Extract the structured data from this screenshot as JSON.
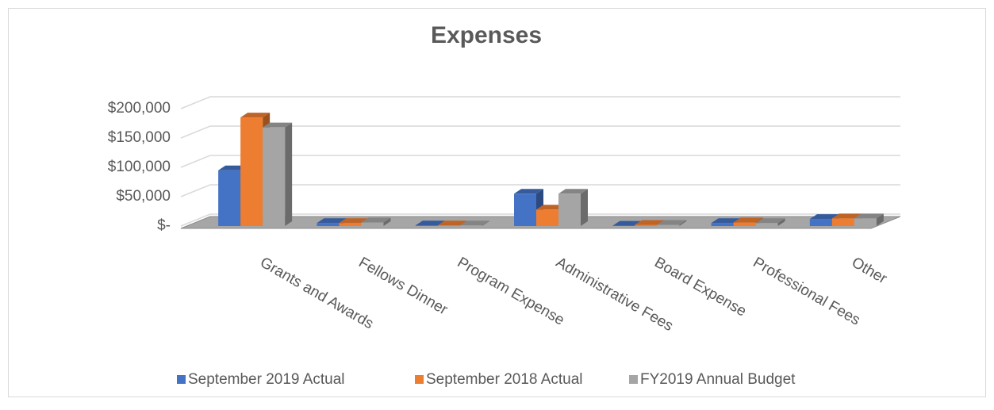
{
  "chart_data": {
    "type": "bar3d",
    "title": "Expenses",
    "categories": [
      "Grants and Awards",
      "Fellows Dinner",
      "Program Expense",
      "Administrative Fees",
      "Board Expense",
      "Professional Fees",
      "Other"
    ],
    "series": [
      {
        "name": "September 2019 Actual",
        "color": "#4472c4",
        "values": [
          95000,
          5000,
          1000,
          55000,
          500,
          5000,
          12000
        ]
      },
      {
        "name": "September 2018 Actual",
        "color": "#ed7d31",
        "values": [
          185000,
          5000,
          1000,
          28000,
          2000,
          6000,
          13000
        ]
      },
      {
        "name": "FY2019 Annual Budget",
        "color": "#a5a5a5",
        "values": [
          168000,
          6000,
          1000,
          55000,
          2000,
          5000,
          13000
        ]
      }
    ],
    "ylim": [
      0,
      200000
    ],
    "yticks": [
      {
        "value": 0,
        "label": "$-"
      },
      {
        "value": 50000,
        "label": "$50,000"
      },
      {
        "value": 100000,
        "label": "$100,000"
      },
      {
        "value": 150000,
        "label": "$150,000"
      },
      {
        "value": 200000,
        "label": "$200,000"
      }
    ],
    "grid": true,
    "legend": "bottom"
  }
}
